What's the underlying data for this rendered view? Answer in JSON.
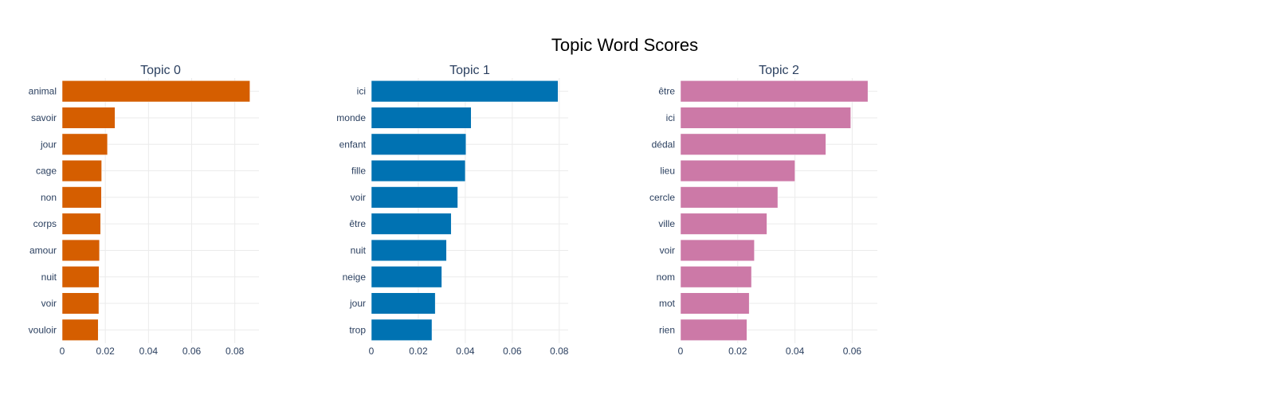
{
  "title": "Topic Word Scores",
  "chart_data": [
    {
      "type": "bar",
      "orientation": "horizontal",
      "title": "Topic 0",
      "color": "#D55E00",
      "xlim": [
        0,
        0.0912
      ],
      "xticks": [
        0,
        0.02,
        0.04,
        0.06,
        0.08
      ],
      "xtick_labels": [
        "0",
        "0.02",
        "0.04",
        "0.06",
        "0.08"
      ],
      "categories": [
        "animal",
        "savoir",
        "jour",
        "cage",
        "non",
        "corps",
        "amour",
        "nuit",
        "voir",
        "vouloir"
      ],
      "values": [
        0.087,
        0.0245,
        0.021,
        0.0183,
        0.0182,
        0.0178,
        0.0173,
        0.0171,
        0.017,
        0.0167
      ],
      "grid": true
    },
    {
      "type": "bar",
      "orientation": "horizontal",
      "title": "Topic 1",
      "color": "#0072B2",
      "xlim": [
        0,
        0.0838
      ],
      "xticks": [
        0,
        0.02,
        0.04,
        0.06,
        0.08
      ],
      "xtick_labels": [
        "0",
        "0.02",
        "0.04",
        "0.06",
        "0.08"
      ],
      "categories": [
        "ici",
        "monde",
        "enfant",
        "fille",
        "voir",
        "être",
        "nuit",
        "neige",
        "jour",
        "trop"
      ],
      "values": [
        0.0795,
        0.0425,
        0.0403,
        0.04,
        0.0368,
        0.034,
        0.032,
        0.03,
        0.0272,
        0.0258
      ],
      "grid": true
    },
    {
      "type": "bar",
      "orientation": "horizontal",
      "title": "Topic 2",
      "color": "#CC79A7",
      "xlim": [
        0,
        0.0688
      ],
      "xticks": [
        0,
        0.02,
        0.04,
        0.06
      ],
      "xtick_labels": [
        "0",
        "0.02",
        "0.04",
        "0.06"
      ],
      "categories": [
        "être",
        "ici",
        "dédal",
        "lieu",
        "cercle",
        "ville",
        "voir",
        "nom",
        "mot",
        "rien"
      ],
      "values": [
        0.0655,
        0.0595,
        0.0508,
        0.04,
        0.034,
        0.0302,
        0.0258,
        0.0248,
        0.024,
        0.0232
      ],
      "grid": true
    }
  ]
}
